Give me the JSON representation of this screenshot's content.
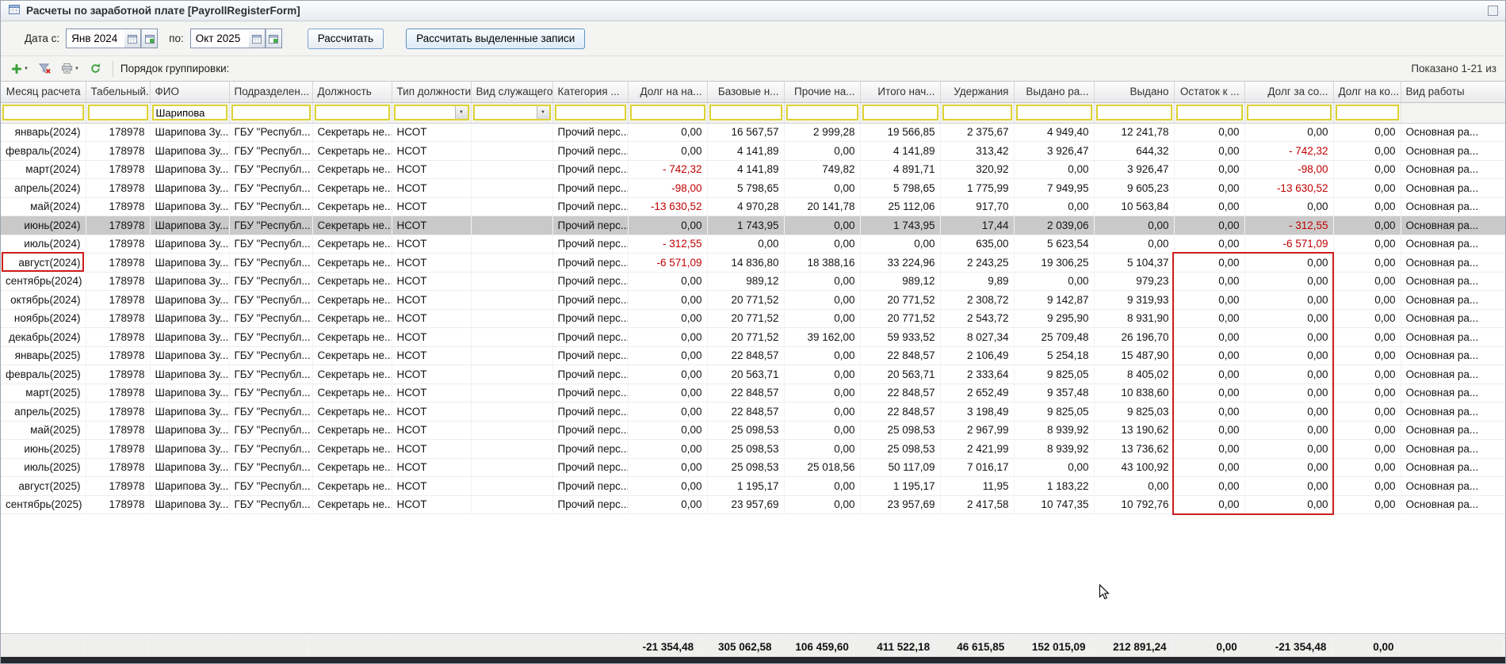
{
  "window": {
    "title": "Расчеты по заработной плате [PayrollRegisterForm]",
    "icon": "form-grid-icon"
  },
  "toolbar": {
    "date_from_label": "Дата с:",
    "date_from_value": "Янв 2024",
    "date_to_label": "по:",
    "date_to_value": "Окт 2025",
    "calc_button": "Рассчитать",
    "calc_selected_button": "Рассчитать выделенные записи"
  },
  "actionbar": {
    "icons": [
      "add-record-icon",
      "clear-filter-icon",
      "print-icon",
      "refresh-icon"
    ],
    "grouping_label": "Порядок группировки:",
    "shown_label": "Показано 1-21 из"
  },
  "table": {
    "columns": [
      {
        "label": "Месяц расчета",
        "align": "right"
      },
      {
        "label": "Табельный...",
        "align": "right"
      },
      {
        "label": "ФИО",
        "align": "left"
      },
      {
        "label": "Подразделен...",
        "align": "left"
      },
      {
        "label": "Должность",
        "align": "left"
      },
      {
        "label": "Тип должности",
        "align": "left"
      },
      {
        "label": "Вид служащего",
        "align": "left"
      },
      {
        "label": "Категория ...",
        "align": "left"
      },
      {
        "label": "Долг на на...",
        "align": "right"
      },
      {
        "label": "Базовые н...",
        "align": "right"
      },
      {
        "label": "Прочие на...",
        "align": "right"
      },
      {
        "label": "Итого нач...",
        "align": "right"
      },
      {
        "label": "Удержания",
        "align": "right"
      },
      {
        "label": "Выдано ра...",
        "align": "right"
      },
      {
        "label": "Выдано",
        "align": "right"
      },
      {
        "label": "Остаток к ...",
        "align": "right"
      },
      {
        "label": "Долг за со...",
        "align": "right"
      },
      {
        "label": "Долг на ко...",
        "align": "right"
      },
      {
        "label": "Вид работы",
        "align": "left"
      }
    ],
    "filter": {
      "values": [
        "",
        "",
        "Шарипова",
        "",
        "",
        "",
        "",
        "",
        "",
        "",
        "",
        "",
        "",
        "",
        "",
        "",
        "",
        "",
        ""
      ],
      "input_columns": [
        0,
        1,
        2,
        3,
        4,
        5,
        6,
        7,
        8,
        9,
        10,
        11,
        12,
        13,
        14,
        15,
        16,
        17
      ],
      "dropdown_columns": [
        5,
        6
      ]
    },
    "selected_row_index": 5,
    "rows": [
      [
        "январь(2024)",
        "178978",
        "Шарипова Зу...",
        "ГБУ \"Республ...",
        "Секретарь не...",
        "НСОТ",
        "",
        "Прочий перс...",
        "0,00",
        "16 567,57",
        "2 999,28",
        "19 566,85",
        "2 375,67",
        "4 949,40",
        "12 241,78",
        "0,00",
        "0,00",
        "0,00",
        "Основная ра..."
      ],
      [
        "февраль(2024)",
        "178978",
        "Шарипова Зу...",
        "ГБУ \"Республ...",
        "Секретарь не...",
        "НСОТ",
        "",
        "Прочий перс...",
        "0,00",
        "4 141,89",
        "0,00",
        "4 141,89",
        "313,42",
        "3 926,47",
        "644,32",
        "0,00",
        "- 742,32",
        "0,00",
        "Основная ра..."
      ],
      [
        "март(2024)",
        "178978",
        "Шарипова Зу...",
        "ГБУ \"Республ...",
        "Секретарь не...",
        "НСОТ",
        "",
        "Прочий перс...",
        "- 742,32",
        "4 141,89",
        "749,82",
        "4 891,71",
        "320,92",
        "0,00",
        "3 926,47",
        "0,00",
        "-98,00",
        "0,00",
        "Основная ра..."
      ],
      [
        "апрель(2024)",
        "178978",
        "Шарипова Зу...",
        "ГБУ \"Республ...",
        "Секретарь не...",
        "НСОТ",
        "",
        "Прочий перс...",
        "-98,00",
        "5 798,65",
        "0,00",
        "5 798,65",
        "1 775,99",
        "7 949,95",
        "9 605,23",
        "0,00",
        "-13 630,52",
        "0,00",
        "Основная ра..."
      ],
      [
        "май(2024)",
        "178978",
        "Шарипова Зу...",
        "ГБУ \"Республ...",
        "Секретарь не...",
        "НСОТ",
        "",
        "Прочий перс...",
        "-13 630,52",
        "4 970,28",
        "20 141,78",
        "25 112,06",
        "917,70",
        "0,00",
        "10 563,84",
        "0,00",
        "0,00",
        "0,00",
        "Основная ра..."
      ],
      [
        "июнь(2024)",
        "178978",
        "Шарипова Зу...",
        "ГБУ \"Республ...",
        "Секретарь не...",
        "НСОТ",
        "",
        "Прочий перс...",
        "0,00",
        "1 743,95",
        "0,00",
        "1 743,95",
        "17,44",
        "2 039,06",
        "0,00",
        "0,00",
        "- 312,55",
        "0,00",
        "Основная ра..."
      ],
      [
        "июль(2024)",
        "178978",
        "Шарипова Зу...",
        "ГБУ \"Республ...",
        "Секретарь не...",
        "НСОТ",
        "",
        "Прочий перс...",
        "- 312,55",
        "0,00",
        "0,00",
        "0,00",
        "635,00",
        "5 623,54",
        "0,00",
        "0,00",
        "-6 571,09",
        "0,00",
        "Основная ра..."
      ],
      [
        "август(2024)",
        "178978",
        "Шарипова Зу...",
        "ГБУ \"Республ...",
        "Секретарь не...",
        "НСОТ",
        "",
        "Прочий перс...",
        "-6 571,09",
        "14 836,80",
        "18 388,16",
        "33 224,96",
        "2 243,25",
        "19 306,25",
        "5 104,37",
        "0,00",
        "0,00",
        "0,00",
        "Основная ра..."
      ],
      [
        "сентябрь(2024)",
        "178978",
        "Шарипова Зу...",
        "ГБУ \"Республ...",
        "Секретарь не...",
        "НСОТ",
        "",
        "Прочий перс...",
        "0,00",
        "989,12",
        "0,00",
        "989,12",
        "9,89",
        "0,00",
        "979,23",
        "0,00",
        "0,00",
        "0,00",
        "Основная ра..."
      ],
      [
        "октябрь(2024)",
        "178978",
        "Шарипова Зу...",
        "ГБУ \"Республ...",
        "Секретарь не...",
        "НСОТ",
        "",
        "Прочий перс...",
        "0,00",
        "20 771,52",
        "0,00",
        "20 771,52",
        "2 308,72",
        "9 142,87",
        "9 319,93",
        "0,00",
        "0,00",
        "0,00",
        "Основная ра..."
      ],
      [
        "ноябрь(2024)",
        "178978",
        "Шарипова Зу...",
        "ГБУ \"Республ...",
        "Секретарь не...",
        "НСОТ",
        "",
        "Прочий перс...",
        "0,00",
        "20 771,52",
        "0,00",
        "20 771,52",
        "2 543,72",
        "9 295,90",
        "8 931,90",
        "0,00",
        "0,00",
        "0,00",
        "Основная ра..."
      ],
      [
        "декабрь(2024)",
        "178978",
        "Шарипова Зу...",
        "ГБУ \"Республ...",
        "Секретарь не...",
        "НСОТ",
        "",
        "Прочий перс...",
        "0,00",
        "20 771,52",
        "39 162,00",
        "59 933,52",
        "8 027,34",
        "25 709,48",
        "26 196,70",
        "0,00",
        "0,00",
        "0,00",
        "Основная ра..."
      ],
      [
        "январь(2025)",
        "178978",
        "Шарипова Зу...",
        "ГБУ \"Республ...",
        "Секретарь не...",
        "НСОТ",
        "",
        "Прочий перс...",
        "0,00",
        "22 848,57",
        "0,00",
        "22 848,57",
        "2 106,49",
        "5 254,18",
        "15 487,90",
        "0,00",
        "0,00",
        "0,00",
        "Основная ра..."
      ],
      [
        "февраль(2025)",
        "178978",
        "Шарипова Зу...",
        "ГБУ \"Республ...",
        "Секретарь не...",
        "НСОТ",
        "",
        "Прочий перс...",
        "0,00",
        "20 563,71",
        "0,00",
        "20 563,71",
        "2 333,64",
        "9 825,05",
        "8 405,02",
        "0,00",
        "0,00",
        "0,00",
        "Основная ра..."
      ],
      [
        "март(2025)",
        "178978",
        "Шарипова Зу...",
        "ГБУ \"Республ...",
        "Секретарь не...",
        "НСОТ",
        "",
        "Прочий перс...",
        "0,00",
        "22 848,57",
        "0,00",
        "22 848,57",
        "2 652,49",
        "9 357,48",
        "10 838,60",
        "0,00",
        "0,00",
        "0,00",
        "Основная ра..."
      ],
      [
        "апрель(2025)",
        "178978",
        "Шарипова Зу...",
        "ГБУ \"Республ...",
        "Секретарь не...",
        "НСОТ",
        "",
        "Прочий перс...",
        "0,00",
        "22 848,57",
        "0,00",
        "22 848,57",
        "3 198,49",
        "9 825,05",
        "9 825,03",
        "0,00",
        "0,00",
        "0,00",
        "Основная ра..."
      ],
      [
        "май(2025)",
        "178978",
        "Шарипова Зу...",
        "ГБУ \"Республ...",
        "Секретарь не...",
        "НСОТ",
        "",
        "Прочий перс...",
        "0,00",
        "25 098,53",
        "0,00",
        "25 098,53",
        "2 967,99",
        "8 939,92",
        "13 190,62",
        "0,00",
        "0,00",
        "0,00",
        "Основная ра..."
      ],
      [
        "июнь(2025)",
        "178978",
        "Шарипова Зу...",
        "ГБУ \"Республ...",
        "Секретарь не...",
        "НСОТ",
        "",
        "Прочий перс...",
        "0,00",
        "25 098,53",
        "0,00",
        "25 098,53",
        "2 421,99",
        "8 939,92",
        "13 736,62",
        "0,00",
        "0,00",
        "0,00",
        "Основная ра..."
      ],
      [
        "июль(2025)",
        "178978",
        "Шарипова Зу...",
        "ГБУ \"Республ...",
        "Секретарь не...",
        "НСОТ",
        "",
        "Прочий перс...",
        "0,00",
        "25 098,53",
        "25 018,56",
        "50 117,09",
        "7 016,17",
        "0,00",
        "43 100,92",
        "0,00",
        "0,00",
        "0,00",
        "Основная ра..."
      ],
      [
        "август(2025)",
        "178978",
        "Шарипова Зу...",
        "ГБУ \"Республ...",
        "Секретарь не...",
        "НСОТ",
        "",
        "Прочий перс...",
        "0,00",
        "1 195,17",
        "0,00",
        "1 195,17",
        "11,95",
        "1 183,22",
        "0,00",
        "0,00",
        "0,00",
        "0,00",
        "Основная ра..."
      ],
      [
        "сентябрь(2025)",
        "178978",
        "Шарипова Зу...",
        "ГБУ \"Республ...",
        "Секретарь не...",
        "НСОТ",
        "",
        "Прочий перс...",
        "0,00",
        "23 957,69",
        "0,00",
        "23 957,69",
        "2 417,58",
        "10 747,35",
        "10 792,76",
        "0,00",
        "0,00",
        "0,00",
        "Основная ра..."
      ]
    ]
  },
  "footer": {
    "totals": [
      "",
      "",
      "",
      "",
      "",
      "",
      "",
      "",
      "-21 354,48",
      "305 062,58",
      "106 459,60",
      "411 522,18",
      "46 615,85",
      "152 015,09",
      "212 891,24",
      "0,00",
      "-21 354,48",
      "0,00",
      ""
    ]
  },
  "annotations": {
    "color": "#cf1d1d",
    "month_cell_highlighted": "август(2024)",
    "columns_highlighted": [
      "Остаток к ...",
      "Долг за со..."
    ],
    "rows_highlighted_range": [
      "август(2024)",
      "сентябрь(2025)"
    ]
  }
}
